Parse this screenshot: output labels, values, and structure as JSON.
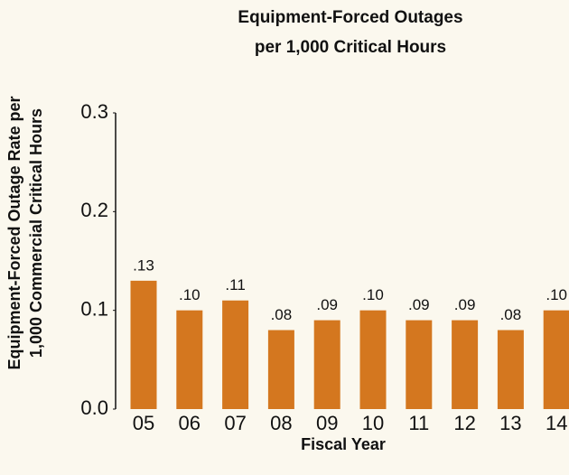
{
  "chart_data": {
    "type": "bar",
    "title": [
      "Equipment-Forced Outages",
      "per 1,000 Critical Hours"
    ],
    "y_label": [
      "Equipment-Forced Outage Rate per",
      "1,000 Commercial Critical Hours"
    ],
    "x_label": "Fiscal Year",
    "categories": [
      "05",
      "06",
      "07",
      "08",
      "09",
      "10",
      "11",
      "12",
      "13",
      "14"
    ],
    "values": [
      0.13,
      0.1,
      0.11,
      0.08,
      0.09,
      0.1,
      0.09,
      0.09,
      0.08,
      0.1
    ],
    "value_labels": [
      ".13",
      ".10",
      ".11",
      ".08",
      ".09",
      ".10",
      ".09",
      ".09",
      ".08",
      ".10"
    ],
    "color": "#d4771f",
    "ylim": [
      0,
      0.3
    ],
    "yticks": [
      {
        "value": 0,
        "label": "0.0"
      },
      0.1,
      0.2,
      0.3
    ],
    "grid": false
  }
}
